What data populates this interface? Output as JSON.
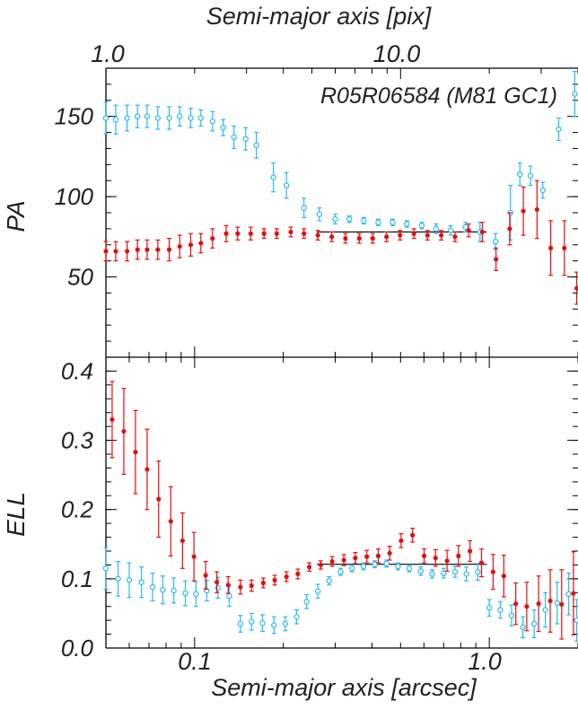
{
  "figure": {
    "top_axis_label": "Semi-major axis [pix]",
    "bottom_axis_label": "Semi-major axis [arcsec]",
    "object_label": "R05R06584 (M81 GC1)",
    "top_ticks": [
      "1.0",
      "10.0"
    ],
    "bottom_ticks": [
      "0.1",
      "1.0"
    ]
  },
  "chart_data": [
    {
      "type": "scatter",
      "ylabel": "PA",
      "ylim": [
        0,
        180
      ],
      "xlim_arcsec": [
        0.05,
        2.0
      ],
      "yticks": [
        "50",
        "100",
        "150"
      ],
      "log_x": true,
      "colors": {
        "blue": "#2bb9ec",
        "red": "#e01010",
        "fit": "#000000"
      },
      "series": [
        {
          "marker": "open-circle",
          "color": "#2bb9ec",
          "points": [
            {
              "x": 0.05,
              "y": 149,
              "e": 10
            },
            {
              "x": 0.054,
              "y": 148,
              "e": 9
            },
            {
              "x": 0.059,
              "y": 149,
              "e": 8
            },
            {
              "x": 0.064,
              "y": 150,
              "e": 7
            },
            {
              "x": 0.069,
              "y": 150,
              "e": 7
            },
            {
              "x": 0.075,
              "y": 149,
              "e": 7
            },
            {
              "x": 0.082,
              "y": 149,
              "e": 7
            },
            {
              "x": 0.089,
              "y": 150,
              "e": 6
            },
            {
              "x": 0.097,
              "y": 149,
              "e": 6
            },
            {
              "x": 0.105,
              "y": 149,
              "e": 5
            },
            {
              "x": 0.115,
              "y": 147,
              "e": 6
            },
            {
              "x": 0.125,
              "y": 143,
              "e": 5
            },
            {
              "x": 0.136,
              "y": 137,
              "e": 7
            },
            {
              "x": 0.149,
              "y": 136,
              "e": 7
            },
            {
              "x": 0.162,
              "y": 132,
              "e": 8
            },
            {
              "x": 0.185,
              "y": 112,
              "e": 9
            },
            {
              "x": 0.205,
              "y": 107,
              "e": 8
            },
            {
              "x": 0.235,
              "y": 93,
              "e": 6
            },
            {
              "x": 0.265,
              "y": 89,
              "e": 4
            },
            {
              "x": 0.3,
              "y": 86,
              "e": 3
            },
            {
              "x": 0.335,
              "y": 86,
              "e": 2
            },
            {
              "x": 0.375,
              "y": 85,
              "e": 2
            },
            {
              "x": 0.42,
              "y": 84,
              "e": 2
            },
            {
              "x": 0.47,
              "y": 84,
              "e": 2
            },
            {
              "x": 0.525,
              "y": 83,
              "e": 2
            },
            {
              "x": 0.59,
              "y": 82,
              "e": 2
            },
            {
              "x": 0.66,
              "y": 80,
              "e": 3
            },
            {
              "x": 0.74,
              "y": 79,
              "e": 3
            },
            {
              "x": 0.83,
              "y": 81,
              "e": 3
            },
            {
              "x": 0.93,
              "y": 78,
              "e": 6
            },
            {
              "x": 1.05,
              "y": 72,
              "e": 5
            },
            {
              "x": 1.18,
              "y": 90,
              "e": 17
            },
            {
              "x": 1.27,
              "y": 114,
              "e": 7
            },
            {
              "x": 1.38,
              "y": 113,
              "e": 6
            },
            {
              "x": 1.52,
              "y": 104,
              "e": 5
            },
            {
              "x": 1.72,
              "y": 142,
              "e": 7
            },
            {
              "x": 1.95,
              "y": 164,
              "e": 14
            }
          ]
        },
        {
          "marker": "filled-dot",
          "color": "#e01010",
          "points": [
            {
              "x": 0.05,
              "y": 66,
              "e": 6
            },
            {
              "x": 0.054,
              "y": 66,
              "e": 6
            },
            {
              "x": 0.059,
              "y": 66,
              "e": 6
            },
            {
              "x": 0.064,
              "y": 67,
              "e": 6
            },
            {
              "x": 0.069,
              "y": 67,
              "e": 6
            },
            {
              "x": 0.075,
              "y": 67,
              "e": 6
            },
            {
              "x": 0.082,
              "y": 67,
              "e": 7
            },
            {
              "x": 0.089,
              "y": 69,
              "e": 7
            },
            {
              "x": 0.097,
              "y": 70,
              "e": 7
            },
            {
              "x": 0.105,
              "y": 71,
              "e": 6
            },
            {
              "x": 0.115,
              "y": 74,
              "e": 6
            },
            {
              "x": 0.128,
              "y": 77,
              "e": 5
            },
            {
              "x": 0.14,
              "y": 77,
              "e": 4
            },
            {
              "x": 0.155,
              "y": 77,
              "e": 4
            },
            {
              "x": 0.172,
              "y": 77,
              "e": 3
            },
            {
              "x": 0.19,
              "y": 77,
              "e": 3
            },
            {
              "x": 0.212,
              "y": 78,
              "e": 3
            },
            {
              "x": 0.235,
              "y": 77,
              "e": 3
            },
            {
              "x": 0.262,
              "y": 76,
              "e": 3
            },
            {
              "x": 0.292,
              "y": 75,
              "e": 3
            },
            {
              "x": 0.325,
              "y": 74,
              "e": 3
            },
            {
              "x": 0.362,
              "y": 74,
              "e": 3
            },
            {
              "x": 0.402,
              "y": 74,
              "e": 3
            },
            {
              "x": 0.448,
              "y": 75,
              "e": 3
            },
            {
              "x": 0.498,
              "y": 76,
              "e": 3
            },
            {
              "x": 0.555,
              "y": 77,
              "e": 3
            },
            {
              "x": 0.617,
              "y": 76,
              "e": 3
            },
            {
              "x": 0.687,
              "y": 76,
              "e": 3
            },
            {
              "x": 0.765,
              "y": 75,
              "e": 3
            },
            {
              "x": 0.851,
              "y": 79,
              "e": 4
            },
            {
              "x": 0.947,
              "y": 78,
              "e": 6
            },
            {
              "x": 1.054,
              "y": 61,
              "e": 7
            },
            {
              "x": 1.173,
              "y": 80,
              "e": 10
            },
            {
              "x": 1.305,
              "y": 91,
              "e": 15
            },
            {
              "x": 1.452,
              "y": 92,
              "e": 18
            },
            {
              "x": 1.616,
              "y": 68,
              "e": 17
            },
            {
              "x": 1.798,
              "y": 68,
              "e": 17
            },
            {
              "x": 1.98,
              "y": 43,
              "e": 10
            }
          ]
        }
      ],
      "fit_lines": [
        {
          "x0": 0.26,
          "x1": 0.98,
          "y": 78
        }
      ]
    },
    {
      "type": "scatter",
      "ylabel": "ELL",
      "ylim": [
        0,
        0.42
      ],
      "xlim_arcsec": [
        0.05,
        2.0
      ],
      "yticks": [
        "0.0",
        "0.1",
        "0.2",
        "0.3",
        "0.4"
      ],
      "log_x": true,
      "series": [
        {
          "marker": "open-circle",
          "color": "#2bb9ec",
          "points": [
            {
              "x": 0.05,
              "y": 0.115,
              "e": 0.03
            },
            {
              "x": 0.055,
              "y": 0.1,
              "e": 0.025
            },
            {
              "x": 0.06,
              "y": 0.098,
              "e": 0.025
            },
            {
              "x": 0.066,
              "y": 0.095,
              "e": 0.022
            },
            {
              "x": 0.072,
              "y": 0.088,
              "e": 0.02
            },
            {
              "x": 0.078,
              "y": 0.084,
              "e": 0.02
            },
            {
              "x": 0.085,
              "y": 0.083,
              "e": 0.018
            },
            {
              "x": 0.093,
              "y": 0.079,
              "e": 0.018
            },
            {
              "x": 0.101,
              "y": 0.078,
              "e": 0.018
            },
            {
              "x": 0.11,
              "y": 0.083,
              "e": 0.015
            },
            {
              "x": 0.12,
              "y": 0.087,
              "e": 0.015
            },
            {
              "x": 0.131,
              "y": 0.075,
              "e": 0.015
            },
            {
              "x": 0.143,
              "y": 0.035,
              "e": 0.012
            },
            {
              "x": 0.156,
              "y": 0.038,
              "e": 0.012
            },
            {
              "x": 0.17,
              "y": 0.036,
              "e": 0.012
            },
            {
              "x": 0.186,
              "y": 0.033,
              "e": 0.012
            },
            {
              "x": 0.203,
              "y": 0.035,
              "e": 0.01
            },
            {
              "x": 0.222,
              "y": 0.045,
              "e": 0.01
            },
            {
              "x": 0.24,
              "y": 0.067,
              "e": 0.01
            },
            {
              "x": 0.262,
              "y": 0.082,
              "e": 0.01
            },
            {
              "x": 0.286,
              "y": 0.097,
              "e": 0.006
            },
            {
              "x": 0.313,
              "y": 0.11,
              "e": 0.005
            },
            {
              "x": 0.342,
              "y": 0.115,
              "e": 0.005
            },
            {
              "x": 0.374,
              "y": 0.118,
              "e": 0.005
            },
            {
              "x": 0.409,
              "y": 0.121,
              "e": 0.005
            },
            {
              "x": 0.448,
              "y": 0.122,
              "e": 0.005
            },
            {
              "x": 0.49,
              "y": 0.118,
              "e": 0.005
            },
            {
              "x": 0.535,
              "y": 0.115,
              "e": 0.005
            },
            {
              "x": 0.585,
              "y": 0.111,
              "e": 0.006
            },
            {
              "x": 0.64,
              "y": 0.107,
              "e": 0.006
            },
            {
              "x": 0.7,
              "y": 0.108,
              "e": 0.007
            },
            {
              "x": 0.765,
              "y": 0.11,
              "e": 0.008
            },
            {
              "x": 0.836,
              "y": 0.107,
              "e": 0.01
            },
            {
              "x": 0.914,
              "y": 0.11,
              "e": 0.012
            },
            {
              "x": 1.0,
              "y": 0.058,
              "e": 0.012
            },
            {
              "x": 1.09,
              "y": 0.055,
              "e": 0.012
            },
            {
              "x": 1.19,
              "y": 0.047,
              "e": 0.015
            },
            {
              "x": 1.3,
              "y": 0.03,
              "e": 0.015
            },
            {
              "x": 1.42,
              "y": 0.035,
              "e": 0.02
            },
            {
              "x": 1.55,
              "y": 0.055,
              "e": 0.025
            },
            {
              "x": 1.7,
              "y": 0.065,
              "e": 0.03
            },
            {
              "x": 1.86,
              "y": 0.078,
              "e": 0.03
            },
            {
              "x": 1.98,
              "y": 0.04,
              "e": 0.03
            }
          ]
        },
        {
          "marker": "filled-dot",
          "color": "#e01010",
          "points": [
            {
              "x": 0.0525,
              "y": 0.33,
              "e": 0.055
            },
            {
              "x": 0.0575,
              "y": 0.313,
              "e": 0.062
            },
            {
              "x": 0.063,
              "y": 0.283,
              "e": 0.06
            },
            {
              "x": 0.069,
              "y": 0.258,
              "e": 0.058
            },
            {
              "x": 0.0755,
              "y": 0.215,
              "e": 0.055
            },
            {
              "x": 0.083,
              "y": 0.183,
              "e": 0.05
            },
            {
              "x": 0.091,
              "y": 0.155,
              "e": 0.04
            },
            {
              "x": 0.0995,
              "y": 0.132,
              "e": 0.035
            },
            {
              "x": 0.109,
              "y": 0.105,
              "e": 0.02
            },
            {
              "x": 0.119,
              "y": 0.095,
              "e": 0.015
            },
            {
              "x": 0.13,
              "y": 0.091,
              "e": 0.012
            },
            {
              "x": 0.143,
              "y": 0.088,
              "e": 0.01
            },
            {
              "x": 0.156,
              "y": 0.09,
              "e": 0.008
            },
            {
              "x": 0.171,
              "y": 0.094,
              "e": 0.007
            },
            {
              "x": 0.187,
              "y": 0.098,
              "e": 0.007
            },
            {
              "x": 0.205,
              "y": 0.103,
              "e": 0.007
            },
            {
              "x": 0.224,
              "y": 0.107,
              "e": 0.007
            },
            {
              "x": 0.245,
              "y": 0.117,
              "e": 0.006
            },
            {
              "x": 0.268,
              "y": 0.12,
              "e": 0.006
            },
            {
              "x": 0.293,
              "y": 0.125,
              "e": 0.007
            },
            {
              "x": 0.321,
              "y": 0.127,
              "e": 0.008
            },
            {
              "x": 0.351,
              "y": 0.13,
              "e": 0.008
            },
            {
              "x": 0.384,
              "y": 0.132,
              "e": 0.009
            },
            {
              "x": 0.42,
              "y": 0.133,
              "e": 0.01
            },
            {
              "x": 0.459,
              "y": 0.137,
              "e": 0.01
            },
            {
              "x": 0.502,
              "y": 0.155,
              "e": 0.01
            },
            {
              "x": 0.549,
              "y": 0.163,
              "e": 0.01
            },
            {
              "x": 0.601,
              "y": 0.133,
              "e": 0.01
            },
            {
              "x": 0.657,
              "y": 0.13,
              "e": 0.012
            },
            {
              "x": 0.719,
              "y": 0.126,
              "e": 0.015
            },
            {
              "x": 0.786,
              "y": 0.133,
              "e": 0.015
            },
            {
              "x": 0.86,
              "y": 0.14,
              "e": 0.015
            },
            {
              "x": 0.941,
              "y": 0.123,
              "e": 0.02
            },
            {
              "x": 1.03,
              "y": 0.11,
              "e": 0.025
            },
            {
              "x": 1.12,
              "y": 0.104,
              "e": 0.03
            },
            {
              "x": 1.23,
              "y": 0.064,
              "e": 0.03
            },
            {
              "x": 1.34,
              "y": 0.06,
              "e": 0.035
            },
            {
              "x": 1.47,
              "y": 0.064,
              "e": 0.04
            },
            {
              "x": 1.61,
              "y": 0.068,
              "e": 0.045
            },
            {
              "x": 1.76,
              "y": 0.063,
              "e": 0.05
            },
            {
              "x": 1.93,
              "y": 0.079,
              "e": 0.06
            }
          ]
        }
      ],
      "fit_lines": [
        {
          "x0": 0.26,
          "x1": 0.98,
          "y": 0.121
        }
      ]
    }
  ]
}
